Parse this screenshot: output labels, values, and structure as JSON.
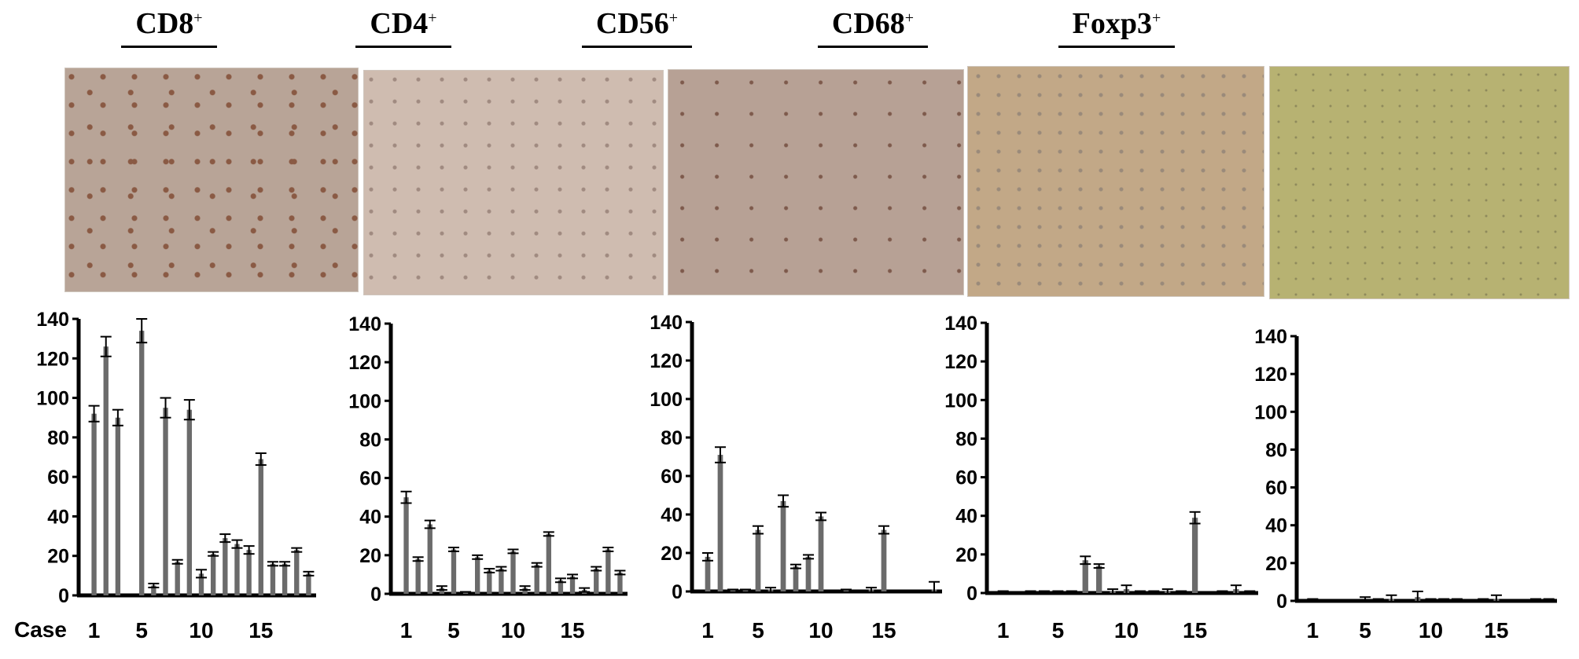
{
  "panels": [
    {
      "marker": "CD8",
      "sup": "+"
    },
    {
      "marker": "CD4",
      "sup": "+"
    },
    {
      "marker": "CD56",
      "sup": "+"
    },
    {
      "marker": "CD68",
      "sup": "+"
    },
    {
      "marker": "Foxp3",
      "sup": "+"
    }
  ],
  "x_prefix_label": "Case",
  "chart_data": [
    {
      "type": "bar",
      "title": "CD8+",
      "ylim": [
        0,
        140
      ],
      "yticks": [
        0,
        20,
        40,
        60,
        80,
        100,
        120,
        140
      ],
      "xticks": [
        1,
        5,
        10,
        15
      ],
      "categories": [
        1,
        2,
        3,
        4,
        5,
        6,
        7,
        8,
        9,
        10,
        11,
        12,
        13,
        14,
        15,
        16,
        17,
        18,
        19
      ],
      "values": [
        92,
        126,
        90,
        0,
        134,
        5,
        95,
        17,
        94,
        11,
        21,
        29,
        26,
        23,
        69,
        16,
        16,
        23,
        11
      ],
      "errors": [
        4,
        5,
        4,
        0,
        6,
        1,
        5,
        1,
        5,
        2,
        1,
        2,
        2,
        2,
        3,
        1,
        1,
        1,
        1
      ]
    },
    {
      "type": "bar",
      "title": "CD4+",
      "ylim": [
        0,
        140
      ],
      "yticks": [
        0,
        20,
        40,
        60,
        80,
        100,
        120,
        140
      ],
      "xticks": [
        1,
        5,
        10,
        15
      ],
      "categories": [
        1,
        2,
        3,
        4,
        5,
        6,
        7,
        8,
        9,
        10,
        11,
        12,
        13,
        14,
        15,
        16,
        17,
        18,
        19
      ],
      "values": [
        50,
        18,
        36,
        3,
        23,
        1,
        19,
        12,
        13,
        22,
        3,
        15,
        31,
        7,
        9,
        2,
        13,
        23,
        11
      ],
      "errors": [
        3,
        1,
        2,
        1,
        1,
        0,
        1,
        1,
        1,
        1,
        1,
        1,
        1,
        1,
        1,
        1,
        1,
        1,
        1
      ]
    },
    {
      "type": "bar",
      "title": "CD56+",
      "ylim": [
        0,
        140
      ],
      "yticks": [
        0,
        20,
        40,
        60,
        80,
        100,
        120,
        140
      ],
      "xticks": [
        1,
        5,
        10,
        15
      ],
      "categories": [
        1,
        2,
        3,
        4,
        5,
        6,
        7,
        8,
        9,
        10,
        11,
        12,
        13,
        14,
        15,
        16,
        17,
        18,
        19
      ],
      "values": [
        18,
        71,
        1,
        1,
        32,
        1,
        47,
        13,
        18,
        39,
        0,
        1,
        0,
        1,
        32,
        0,
        0,
        0,
        1
      ],
      "errors": [
        2,
        4,
        0,
        0,
        2,
        1,
        3,
        1,
        1,
        2,
        0,
        0,
        0,
        1,
        2,
        0,
        0,
        0,
        4
      ]
    },
    {
      "type": "bar",
      "title": "CD68+",
      "ylim": [
        0,
        140
      ],
      "yticks": [
        0,
        20,
        40,
        60,
        80,
        100,
        120,
        140
      ],
      "xticks": [
        1,
        5,
        10,
        15
      ],
      "categories": [
        1,
        2,
        3,
        4,
        5,
        6,
        7,
        8,
        9,
        10,
        11,
        12,
        13,
        14,
        15,
        16,
        17,
        18,
        19
      ],
      "values": [
        0,
        0,
        0,
        0,
        0,
        0,
        17,
        14,
        1,
        2,
        0,
        0,
        1,
        0,
        39,
        0,
        0,
        2,
        0
      ],
      "errors": [
        1,
        0,
        1,
        1,
        1,
        1,
        2,
        1,
        1,
        2,
        1,
        1,
        1,
        1,
        3,
        0,
        1,
        2,
        1
      ]
    },
    {
      "type": "bar",
      "title": "Foxp3+",
      "ylim": [
        0,
        140
      ],
      "yticks": [
        0,
        20,
        40,
        60,
        80,
        100,
        120,
        140
      ],
      "xticks": [
        1,
        5,
        10,
        15
      ],
      "categories": [
        1,
        2,
        3,
        4,
        5,
        6,
        7,
        8,
        9,
        10,
        11,
        12,
        13,
        14,
        15,
        16,
        17,
        18,
        19
      ],
      "values": [
        0,
        0,
        0,
        0,
        0,
        0,
        1,
        0,
        2,
        0,
        0,
        0,
        0,
        0,
        1,
        0,
        0,
        0,
        0
      ],
      "errors": [
        1,
        0,
        0,
        0,
        2,
        1,
        2,
        0,
        3,
        1,
        1,
        1,
        0,
        1,
        2,
        0,
        0,
        1,
        1
      ]
    }
  ],
  "colors": {
    "bar": "#6b6b6b",
    "axis": "#000000",
    "micro": [
      "#b8a497",
      "#cfbcb0",
      "#b7a195",
      "#c2a887",
      "#b7b272"
    ]
  }
}
